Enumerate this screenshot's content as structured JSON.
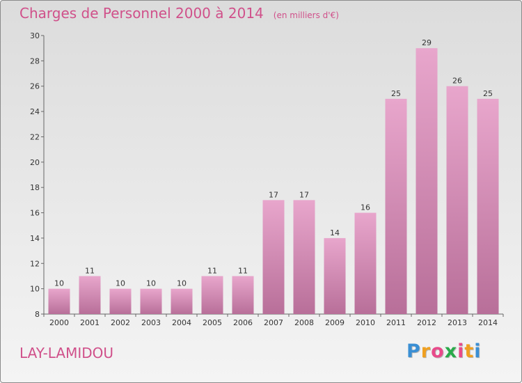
{
  "header": {
    "title": "Charges de Personnel 2000 à 2014",
    "subtitle": "(en milliers d'€)"
  },
  "footer": {
    "commune": "LAY-LAMIDOU",
    "brand": {
      "letters": [
        "P",
        "r",
        "o",
        "x",
        "i",
        "t",
        "i"
      ],
      "colors": [
        "#3a8fd4",
        "#f0a020",
        "#e84a8a",
        "#2aaa4a",
        "#e84a8a",
        "#f0a020",
        "#3a8fd4"
      ]
    }
  },
  "chart_data": {
    "type": "bar",
    "title": "Charges de Personnel 2000 à 2014",
    "subtitle": "(en milliers d'€)",
    "categories": [
      "2000",
      "2001",
      "2002",
      "2003",
      "2004",
      "2005",
      "2006",
      "2007",
      "2008",
      "2009",
      "2010",
      "2011",
      "2012",
      "2013",
      "2014"
    ],
    "values": [
      10,
      11,
      10,
      10,
      10,
      11,
      11,
      17,
      17,
      14,
      16,
      25,
      29,
      26,
      25
    ],
    "ylim": [
      8,
      30
    ],
    "yticks": [
      8,
      10,
      12,
      14,
      16,
      18,
      20,
      22,
      24,
      26,
      28,
      30
    ],
    "grid": false,
    "bar_color": "#d98bb7"
  }
}
